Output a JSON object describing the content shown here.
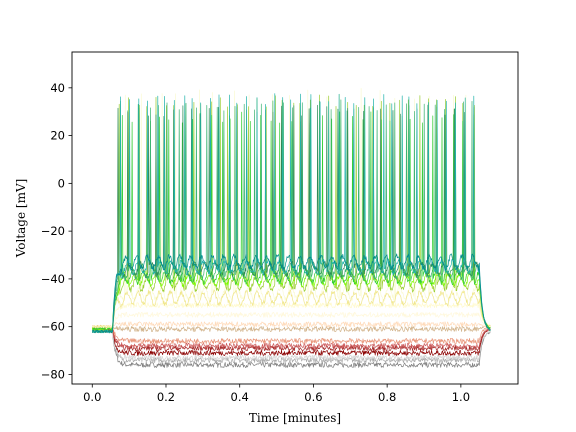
{
  "chart_data": {
    "type": "line",
    "title": "",
    "xlabel": "Time [minutes]",
    "ylabel": "Voltage [mV]",
    "xlim": [
      -0.055,
      1.155
    ],
    "ylim": [
      -84,
      55
    ],
    "xticks": [
      0.0,
      0.2,
      0.4,
      0.6,
      0.8,
      1.0
    ],
    "xtick_labels": [
      "0.0",
      "0.2",
      "0.4",
      "0.6",
      "0.8",
      "1.0"
    ],
    "yticks": [
      -80,
      -60,
      -40,
      -20,
      0,
      20,
      40
    ],
    "ytick_labels": [
      "−80",
      "−60",
      "−40",
      "−20",
      "0",
      "20",
      "40"
    ],
    "grid": false,
    "legend": "none",
    "stimulus_window": [
      0.055,
      1.05
    ],
    "time_range": [
      0.0,
      1.08
    ],
    "series": [
      {
        "color": "#808080",
        "rest": -62,
        "plateau": -76
      },
      {
        "color": "#a9a9a9",
        "rest": -62,
        "plateau": -74
      },
      {
        "color": "#d3d3d3",
        "rest": -62,
        "plateau": -73
      },
      {
        "color": "#8b0000",
        "rest": -61,
        "plateau": -71
      },
      {
        "color": "#a52a2a",
        "rest": -61,
        "plateau": -69
      },
      {
        "color": "#cd5c5c",
        "rest": -61,
        "plateau": -68
      },
      {
        "color": "#e9967a",
        "rest": -60,
        "plateau": -66
      },
      {
        "color": "#d2b48c",
        "rest": -60,
        "plateau": -61
      },
      {
        "color": "#ffdab9",
        "rest": -60,
        "plateau": -59
      },
      {
        "color": "#fff8dc",
        "rest": -60,
        "plateau": -55
      },
      {
        "color": "#fffacd",
        "rest": -60,
        "plateau": -51
      },
      {
        "color": "#fafad2",
        "rest": -60,
        "plateau": -46,
        "spike_count": 20,
        "spike_peak": 40
      },
      {
        "color": "#f0e68c",
        "rest": -60,
        "plateau": -48
      },
      {
        "color": "#9acd32",
        "rest": -61,
        "plateau": -42,
        "spike_count": 40,
        "spike_peak": 37
      },
      {
        "color": "#7cfc00",
        "rest": -61,
        "plateau": -40
      },
      {
        "color": "#32cd32",
        "rest": -61,
        "plateau": -39,
        "spike_count": 36,
        "spike_peak": 30
      },
      {
        "color": "#3cb371",
        "rest": -62,
        "plateau": -37,
        "spike_count": 38,
        "spike_peak": 35
      },
      {
        "color": "#2e8b57",
        "rest": -62,
        "plateau": -36,
        "spike_count": 40,
        "spike_peak": 33
      },
      {
        "color": "#20b2aa",
        "rest": -62,
        "plateau": -35,
        "spike_count": 40,
        "spike_peak": 38
      },
      {
        "color": "#008b8b",
        "rest": -62,
        "plateau": -33
      }
    ]
  }
}
